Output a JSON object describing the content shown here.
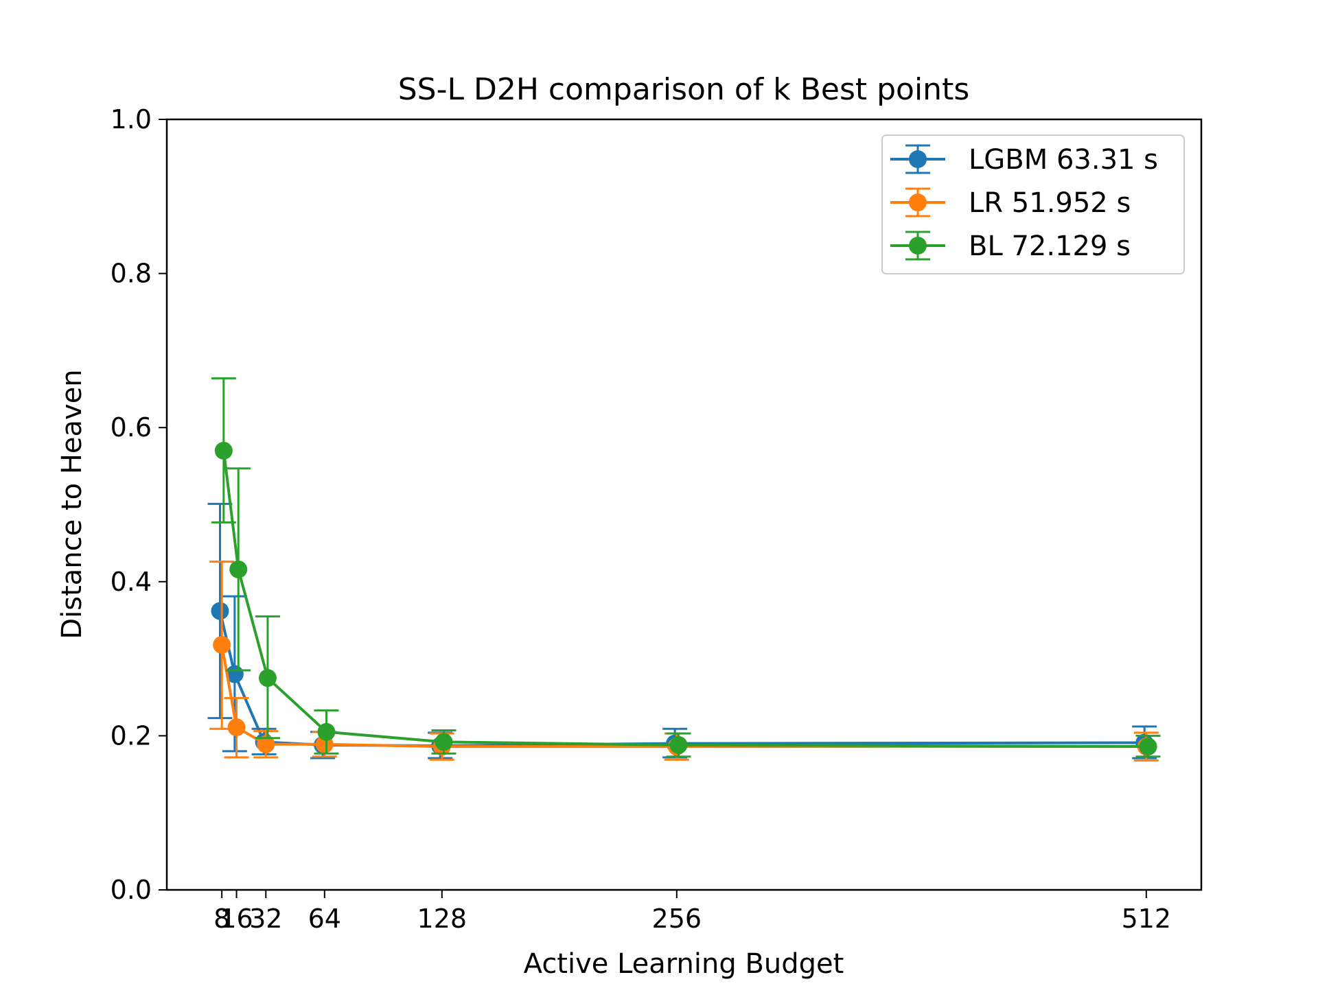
{
  "chart_data": {
    "type": "line",
    "title": "SS-L D2H comparison of k Best points",
    "xlabel": "Active Learning Budget",
    "ylabel": "Distance to Heaven",
    "x": [
      8,
      16,
      32,
      64,
      128,
      256,
      512
    ],
    "xticks": [
      "8",
      "16",
      "32",
      "64",
      "128",
      "256",
      "512"
    ],
    "yticks": [
      "0.0",
      "0.2",
      "0.4",
      "0.6",
      "0.8",
      "1.0"
    ],
    "xlim": [
      -22,
      542
    ],
    "ylim": [
      0,
      1
    ],
    "grid": false,
    "legend_position": "top-right",
    "series": [
      {
        "name": "LGBM 63.31 s",
        "color": "#1f77b4",
        "x_offset": -1,
        "values": [
          0.362,
          0.28,
          0.192,
          0.188,
          0.187,
          0.19,
          0.191
        ],
        "err_low": [
          0.223,
          0.18,
          0.176,
          0.171,
          0.171,
          0.172,
          0.171
        ],
        "err_high": [
          0.501,
          0.381,
          0.209,
          0.205,
          0.204,
          0.209,
          0.212
        ]
      },
      {
        "name": "LR 51.952 s",
        "color": "#ff7f0e",
        "x_offset": 0,
        "values": [
          0.318,
          0.211,
          0.189,
          0.189,
          0.186,
          0.186,
          0.186
        ],
        "err_low": [
          0.209,
          0.172,
          0.172,
          0.173,
          0.169,
          0.169,
          0.168
        ],
        "err_high": [
          0.426,
          0.249,
          0.206,
          0.205,
          0.203,
          0.203,
          0.204
        ]
      },
      {
        "name": "BL 72.129 s",
        "color": "#2ca02c",
        "x_offset": 1,
        "values": [
          0.57,
          0.416,
          0.275,
          0.205,
          0.192,
          0.188,
          0.186
        ],
        "err_low": [
          0.477,
          0.285,
          0.197,
          0.177,
          0.177,
          0.173,
          0.173
        ],
        "err_high": [
          0.664,
          0.547,
          0.355,
          0.233,
          0.207,
          0.203,
          0.2
        ]
      }
    ]
  }
}
